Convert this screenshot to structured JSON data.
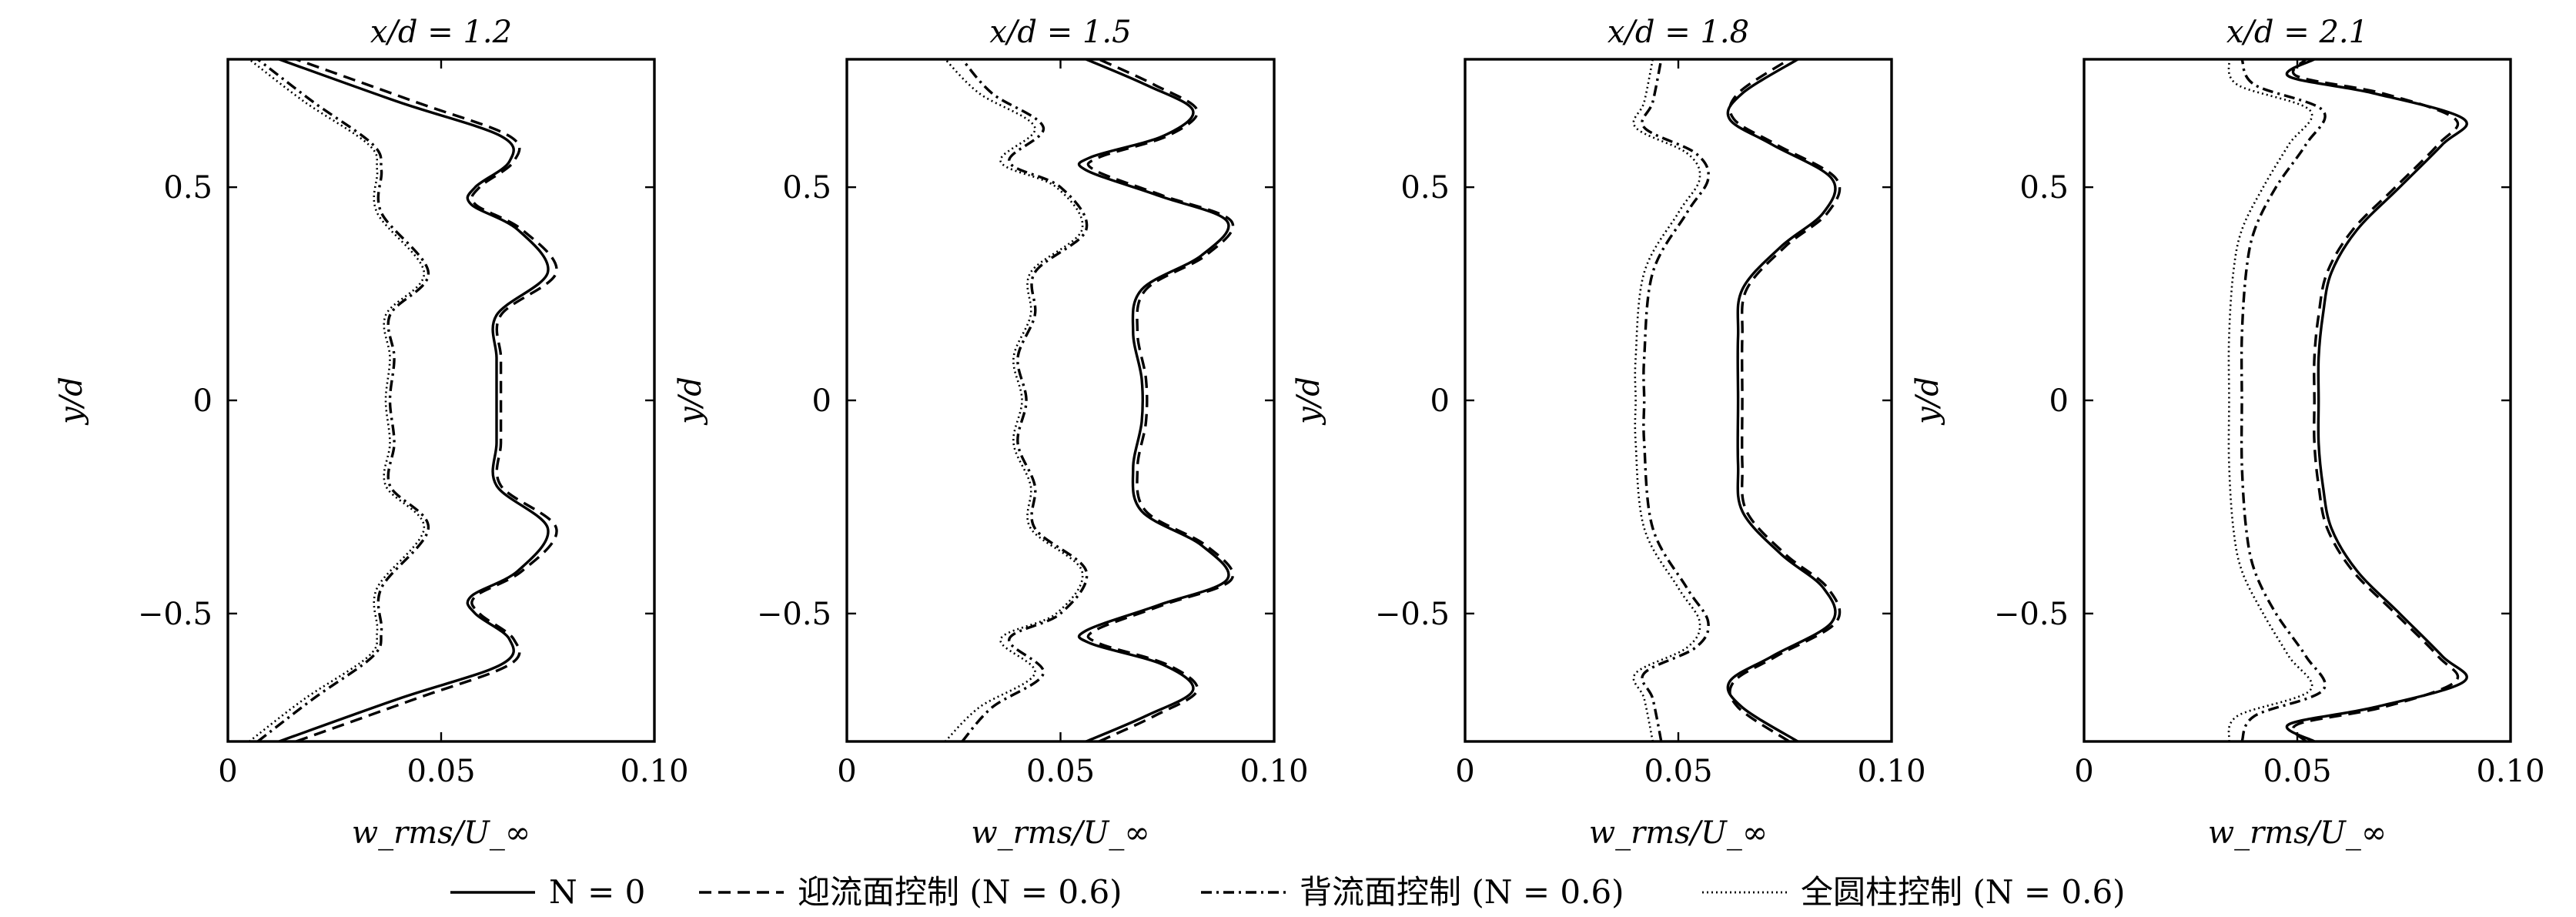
{
  "chart_data": [
    {
      "type": "line",
      "title": "x/d = 1.2",
      "xlabel": "w_rms/U_∞",
      "ylabel": "y/d",
      "xlim": [
        0,
        0.1
      ],
      "ylim": [
        -0.8,
        0.8
      ],
      "xticks": [
        "0",
        "0.05",
        "0.10"
      ],
      "yticks": [
        "−0.5",
        "0",
        "0.5"
      ],
      "series": [
        {
          "name": "N = 0",
          "style": "solid",
          "y": [
            -0.8,
            -0.7,
            -0.62,
            -0.56,
            -0.5,
            -0.46,
            -0.4,
            -0.3,
            -0.2,
            -0.1,
            0.0,
            0.1,
            0.2,
            0.3,
            0.4,
            0.46,
            0.5,
            0.56,
            0.62,
            0.7,
            0.8
          ],
          "x": [
            0.012,
            0.04,
            0.064,
            0.066,
            0.058,
            0.057,
            0.068,
            0.075,
            0.063,
            0.063,
            0.063,
            0.063,
            0.063,
            0.075,
            0.068,
            0.057,
            0.058,
            0.066,
            0.064,
            0.04,
            0.012
          ]
        },
        {
          "name": "迎流面控制 (N = 0.6)",
          "style": "dashed",
          "y": [
            -0.8,
            -0.7,
            -0.62,
            -0.56,
            -0.5,
            -0.46,
            -0.4,
            -0.3,
            -0.2,
            -0.1,
            0.0,
            0.1,
            0.2,
            0.3,
            0.4,
            0.46,
            0.5,
            0.56,
            0.62,
            0.7,
            0.8
          ],
          "x": [
            0.016,
            0.044,
            0.066,
            0.067,
            0.059,
            0.058,
            0.069,
            0.077,
            0.064,
            0.064,
            0.064,
            0.064,
            0.064,
            0.077,
            0.069,
            0.058,
            0.059,
            0.067,
            0.066,
            0.044,
            0.016
          ]
        },
        {
          "name": "背流面控制 (N = 0.6)",
          "style": "dashdot",
          "y": [
            -0.8,
            -0.7,
            -0.6,
            -0.54,
            -0.44,
            -0.3,
            -0.2,
            -0.1,
            0.0,
            0.1,
            0.2,
            0.3,
            0.44,
            0.54,
            0.6,
            0.7,
            0.8
          ],
          "x": [
            0.007,
            0.02,
            0.034,
            0.036,
            0.036,
            0.047,
            0.038,
            0.039,
            0.038,
            0.039,
            0.038,
            0.047,
            0.036,
            0.036,
            0.034,
            0.02,
            0.007
          ]
        },
        {
          "name": "全圆柱控制 (N = 0.6)",
          "style": "dotted",
          "y": [
            -0.8,
            -0.7,
            -0.6,
            -0.54,
            -0.44,
            -0.3,
            -0.2,
            -0.1,
            0.0,
            0.1,
            0.2,
            0.3,
            0.44,
            0.54,
            0.6,
            0.7,
            0.8
          ],
          "x": [
            0.005,
            0.018,
            0.033,
            0.035,
            0.035,
            0.046,
            0.037,
            0.038,
            0.037,
            0.038,
            0.037,
            0.046,
            0.035,
            0.035,
            0.033,
            0.018,
            0.005
          ]
        }
      ]
    },
    {
      "type": "line",
      "title": "x/d = 1.5",
      "xlabel": "w_rms/U_∞",
      "ylabel": "y/d",
      "xlim": [
        0,
        0.1
      ],
      "ylim": [
        -0.8,
        0.8
      ],
      "xticks": [
        "0",
        "0.05",
        "0.10"
      ],
      "yticks": [
        "−0.5",
        "0",
        "0.5"
      ],
      "series": [
        {
          "name": "N = 0",
          "style": "solid",
          "y": [
            -0.8,
            -0.74,
            -0.68,
            -0.62,
            -0.57,
            -0.54,
            -0.48,
            -0.42,
            -0.34,
            -0.26,
            -0.16,
            -0.05,
            0.05,
            0.16,
            0.26,
            0.34,
            0.42,
            0.48,
            0.54,
            0.57,
            0.62,
            0.68,
            0.74,
            0.8
          ],
          "x": [
            0.056,
            0.07,
            0.081,
            0.074,
            0.057,
            0.056,
            0.073,
            0.089,
            0.083,
            0.069,
            0.067,
            0.069,
            0.069,
            0.067,
            0.069,
            0.083,
            0.089,
            0.073,
            0.056,
            0.057,
            0.074,
            0.081,
            0.07,
            0.056
          ]
        },
        {
          "name": "迎流面控制 (N = 0.6)",
          "style": "dashed",
          "y": [
            -0.8,
            -0.74,
            -0.68,
            -0.62,
            -0.57,
            -0.54,
            -0.48,
            -0.42,
            -0.34,
            -0.26,
            -0.16,
            -0.05,
            0.05,
            0.16,
            0.26,
            0.34,
            0.42,
            0.48,
            0.54,
            0.57,
            0.62,
            0.68,
            0.74,
            0.8
          ],
          "x": [
            0.059,
            0.072,
            0.082,
            0.075,
            0.059,
            0.058,
            0.074,
            0.09,
            0.084,
            0.07,
            0.068,
            0.07,
            0.07,
            0.068,
            0.07,
            0.084,
            0.09,
            0.074,
            0.058,
            0.059,
            0.075,
            0.082,
            0.072,
            0.059
          ]
        },
        {
          "name": "背流面控制 (N = 0.6)",
          "style": "dashdot",
          "y": [
            -0.8,
            -0.72,
            -0.64,
            -0.56,
            -0.5,
            -0.4,
            -0.3,
            -0.2,
            -0.1,
            0.0,
            0.1,
            0.2,
            0.3,
            0.4,
            0.5,
            0.56,
            0.64,
            0.72,
            0.8
          ],
          "x": [
            0.027,
            0.034,
            0.046,
            0.038,
            0.05,
            0.056,
            0.044,
            0.044,
            0.04,
            0.042,
            0.04,
            0.044,
            0.044,
            0.056,
            0.05,
            0.038,
            0.046,
            0.034,
            0.027
          ]
        },
        {
          "name": "全圆柱控制 (N = 0.6)",
          "style": "dotted",
          "y": [
            -0.8,
            -0.72,
            -0.64,
            -0.56,
            -0.5,
            -0.4,
            -0.3,
            -0.2,
            -0.1,
            0.0,
            0.1,
            0.2,
            0.3,
            0.4,
            0.5,
            0.56,
            0.64,
            0.72,
            0.8
          ],
          "x": [
            0.023,
            0.031,
            0.044,
            0.036,
            0.049,
            0.055,
            0.043,
            0.043,
            0.039,
            0.041,
            0.039,
            0.043,
            0.043,
            0.055,
            0.049,
            0.036,
            0.044,
            0.031,
            0.023
          ]
        }
      ]
    },
    {
      "type": "line",
      "title": "x/d = 1.8",
      "xlabel": "w_rms/U_∞",
      "ylabel": "y/d",
      "xlim": [
        0,
        0.1
      ],
      "ylim": [
        -0.8,
        0.8
      ],
      "xticks": [
        "0",
        "0.05",
        "0.10"
      ],
      "yticks": [
        "−0.5",
        "0",
        "0.5"
      ],
      "series": [
        {
          "name": "N = 0",
          "style": "solid",
          "y": [
            -0.8,
            -0.72,
            -0.66,
            -0.6,
            -0.52,
            -0.44,
            -0.36,
            -0.26,
            -0.15,
            0.0,
            0.15,
            0.26,
            0.36,
            0.44,
            0.52,
            0.6,
            0.66,
            0.72,
            0.8
          ],
          "x": [
            0.078,
            0.065,
            0.062,
            0.072,
            0.086,
            0.084,
            0.074,
            0.065,
            0.064,
            0.064,
            0.064,
            0.065,
            0.074,
            0.084,
            0.086,
            0.072,
            0.062,
            0.065,
            0.078
          ]
        },
        {
          "name": "迎流面控制 (N = 0.6)",
          "style": "dashed",
          "y": [
            -0.8,
            -0.72,
            -0.66,
            -0.6,
            -0.52,
            -0.44,
            -0.36,
            -0.26,
            -0.15,
            0.0,
            0.15,
            0.26,
            0.36,
            0.44,
            0.52,
            0.6,
            0.66,
            0.72,
            0.8
          ],
          "x": [
            0.076,
            0.064,
            0.063,
            0.073,
            0.087,
            0.085,
            0.075,
            0.066,
            0.065,
            0.065,
            0.065,
            0.066,
            0.075,
            0.085,
            0.087,
            0.073,
            0.063,
            0.064,
            0.076
          ]
        },
        {
          "name": "背流面控制 (N = 0.6)",
          "style": "dashdot",
          "y": [
            -0.8,
            -0.7,
            -0.64,
            -0.58,
            -0.52,
            -0.44,
            -0.3,
            -0.1,
            0.0,
            0.1,
            0.3,
            0.44,
            0.52,
            0.58,
            0.64,
            0.7,
            0.8
          ],
          "x": [
            0.046,
            0.044,
            0.042,
            0.054,
            0.057,
            0.052,
            0.044,
            0.042,
            0.042,
            0.042,
            0.044,
            0.052,
            0.057,
            0.054,
            0.042,
            0.044,
            0.046
          ]
        },
        {
          "name": "全圆柱控制 (N = 0.6)",
          "style": "dotted",
          "y": [
            -0.8,
            -0.7,
            -0.64,
            -0.58,
            -0.52,
            -0.44,
            -0.3,
            -0.1,
            0.0,
            0.1,
            0.3,
            0.44,
            0.52,
            0.58,
            0.64,
            0.7,
            0.8
          ],
          "x": [
            0.044,
            0.042,
            0.04,
            0.052,
            0.055,
            0.05,
            0.042,
            0.04,
            0.04,
            0.04,
            0.042,
            0.05,
            0.055,
            0.052,
            0.04,
            0.042,
            0.044
          ]
        }
      ]
    },
    {
      "type": "line",
      "title": "x/d = 2.1",
      "xlabel": "w_rms/U_∞",
      "ylabel": "y/d",
      "xlim": [
        0,
        0.1
      ],
      "ylim": [
        -0.8,
        0.8
      ],
      "xticks": [
        "0",
        "0.05",
        "0.10"
      ],
      "yticks": [
        "−0.5",
        "0",
        "0.5"
      ],
      "series": [
        {
          "name": "N = 0",
          "style": "solid",
          "y": [
            -0.8,
            -0.76,
            -0.72,
            -0.66,
            -0.6,
            -0.5,
            -0.4,
            -0.3,
            -0.2,
            -0.1,
            0.0,
            0.1,
            0.2,
            0.3,
            0.4,
            0.5,
            0.6,
            0.66,
            0.72,
            0.76,
            0.8
          ],
          "x": [
            0.054,
            0.048,
            0.068,
            0.089,
            0.084,
            0.074,
            0.064,
            0.058,
            0.056,
            0.055,
            0.055,
            0.055,
            0.056,
            0.058,
            0.064,
            0.074,
            0.084,
            0.089,
            0.068,
            0.048,
            0.054
          ]
        },
        {
          "name": "迎流面控制 (N = 0.6)",
          "style": "dashed",
          "y": [
            -0.8,
            -0.76,
            -0.72,
            -0.66,
            -0.6,
            -0.5,
            -0.4,
            -0.3,
            -0.2,
            -0.1,
            0.0,
            0.1,
            0.2,
            0.3,
            0.4,
            0.5,
            0.6,
            0.66,
            0.72,
            0.76,
            0.8
          ],
          "x": [
            0.052,
            0.05,
            0.07,
            0.087,
            0.083,
            0.073,
            0.063,
            0.057,
            0.055,
            0.054,
            0.054,
            0.054,
            0.055,
            0.057,
            0.063,
            0.073,
            0.083,
            0.087,
            0.07,
            0.05,
            0.052
          ]
        },
        {
          "name": "背流面控制 (N = 0.6)",
          "style": "dashdot",
          "y": [
            -0.8,
            -0.74,
            -0.68,
            -0.6,
            -0.5,
            -0.4,
            -0.3,
            -0.15,
            0.0,
            0.15,
            0.3,
            0.4,
            0.5,
            0.6,
            0.68,
            0.74,
            0.8
          ],
          "x": [
            0.037,
            0.04,
            0.056,
            0.052,
            0.045,
            0.04,
            0.038,
            0.037,
            0.037,
            0.037,
            0.038,
            0.04,
            0.045,
            0.052,
            0.056,
            0.04,
            0.037
          ]
        },
        {
          "name": "全圆柱控制 (N = 0.6)",
          "style": "dotted",
          "y": [
            -0.8,
            -0.74,
            -0.68,
            -0.6,
            -0.5,
            -0.4,
            -0.3,
            -0.15,
            0.0,
            0.15,
            0.3,
            0.4,
            0.5,
            0.6,
            0.68,
            0.74,
            0.8
          ],
          "x": [
            0.034,
            0.036,
            0.053,
            0.048,
            0.042,
            0.037,
            0.035,
            0.034,
            0.034,
            0.034,
            0.035,
            0.037,
            0.042,
            0.048,
            0.053,
            0.036,
            0.034
          ]
        }
      ]
    }
  ],
  "legend": {
    "placement": "bottom",
    "items": [
      {
        "label": "N = 0",
        "style": "solid"
      },
      {
        "label": "迎流面控制 (N = 0.6)",
        "style": "dashed"
      },
      {
        "label": "背流面控制 (N = 0.6)",
        "style": "dashdot"
      },
      {
        "label": "全圆柱控制 (N = 0.6)",
        "style": "dotted"
      }
    ]
  },
  "colors": {
    "line": "#000000",
    "frame": "#000000",
    "background": "#ffffff"
  }
}
